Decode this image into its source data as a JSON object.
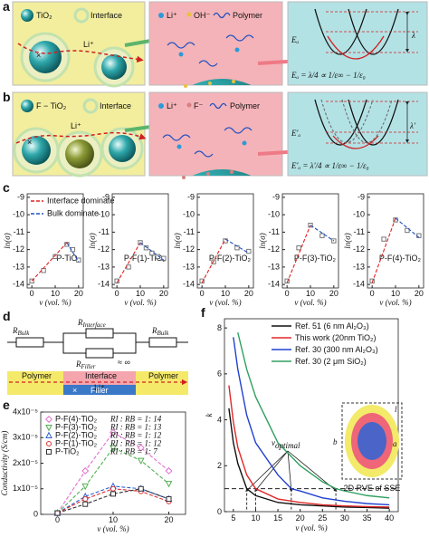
{
  "figure_a": {
    "label": "a",
    "tio2": "TiO₂",
    "interface": "Interface",
    "li": "Li⁺",
    "li_top": "Li⁺",
    "oh": "OH⁻",
    "polymer": "Polymer",
    "ea": "Eₐ",
    "lambda": "λ",
    "formula": "Eₐ = λ/4 ∝ 1/ε∞ − 1/ε₀"
  },
  "figure_b": {
    "label": "b",
    "ftio2": "F − TiO₂",
    "interface": "Interface",
    "li": "Li⁺",
    "li_top": "Li⁺",
    "f": "F⁻",
    "polymer": "Polymer",
    "ea": "E′ₐ",
    "lambda": "λ′",
    "formula": "E′ₐ = λ′/4 ∝ 1/ε∞ − 1/ε₀"
  },
  "figure_d": {
    "label": "d",
    "r_bulk_left": {
      "r": "R",
      "sub": "Bulk"
    },
    "r_interface": {
      "r": "R",
      "sub": "Interface"
    },
    "r_filler": {
      "r": "R",
      "sub": "Filler",
      "approx": "≈ ∞"
    },
    "r_bulk_right": {
      "r": "R",
      "sub": "Bulk"
    },
    "polymer_left": "Polymer",
    "interface": "Interface",
    "polymer_right": "Polymer",
    "li": "Li⁺",
    "filler": "Filler"
  },
  "chart_data": [
    {
      "type": "line",
      "panel_label": "c",
      "title": "P-TiO₂",
      "x_label": "v (vol. %)",
      "y_label": "ln(σ)",
      "xlim": [
        -2,
        22
      ],
      "ylim": [
        -14.2,
        -8.8
      ],
      "xticks": [
        0,
        10,
        20
      ],
      "yticks": [
        -14,
        -13,
        -12,
        -11,
        -10,
        -9
      ],
      "legend": "upper right",
      "series": [
        {
          "color": "#777777",
          "marker": "square",
          "line": false,
          "x": [
            0,
            5,
            10,
            15,
            17.5,
            20
          ],
          "values": [
            -13.8,
            -13.2,
            -12.4,
            -11.7,
            -12.0,
            -12.6
          ]
        },
        {
          "name": "Interface dominate",
          "color": "#e02020",
          "dash": true,
          "x": [
            0,
            15
          ],
          "values": [
            -13.8,
            -11.6
          ]
        },
        {
          "name": "Bulk dominate",
          "color": "#2050c0",
          "dash": true,
          "x": [
            15,
            20
          ],
          "values": [
            -11.6,
            -12.7
          ]
        }
      ]
    },
    {
      "type": "line",
      "title": "P-F(1)-TiO₂",
      "x_label": "v (vol. %)",
      "y_label": "ln(σ)",
      "xlim": [
        -2,
        22
      ],
      "ylim": [
        -14.2,
        -8.8
      ],
      "xticks": [
        0,
        10,
        20
      ],
      "yticks": [
        -14,
        -13,
        -12,
        -11,
        -10,
        -9
      ],
      "series": [
        {
          "color": "#777777",
          "marker": "square",
          "line": false,
          "x": [
            0,
            5,
            10,
            12.5,
            15,
            17.5,
            20
          ],
          "values": [
            -13.8,
            -13.0,
            -11.6,
            -11.9,
            -12.2,
            -12.4,
            -12.5
          ]
        },
        {
          "color": "#e02020",
          "dash": true,
          "x": [
            0,
            10
          ],
          "values": [
            -13.9,
            -11.6
          ]
        },
        {
          "color": "#2050c0",
          "dash": true,
          "x": [
            10,
            20
          ],
          "values": [
            -11.6,
            -12.6
          ]
        }
      ]
    },
    {
      "type": "line",
      "title": "P-F(2)-TiO₂",
      "x_label": "v (vol. %)",
      "y_label": "ln(σ)",
      "xlim": [
        -2,
        22
      ],
      "ylim": [
        -14.2,
        -8.8
      ],
      "xticks": [
        0,
        10,
        20
      ],
      "yticks": [
        -14,
        -13,
        -12,
        -11,
        -10,
        -9
      ],
      "series": [
        {
          "color": "#777777",
          "marker": "square",
          "line": false,
          "x": [
            0,
            5,
            10,
            15,
            20
          ],
          "values": [
            -13.8,
            -12.7,
            -11.5,
            -11.9,
            -12.1
          ]
        },
        {
          "color": "#e02020",
          "dash": true,
          "x": [
            0,
            10
          ],
          "values": [
            -13.9,
            -11.4
          ]
        },
        {
          "color": "#2050c0",
          "dash": true,
          "x": [
            10,
            20
          ],
          "values": [
            -11.4,
            -12.2
          ]
        }
      ]
    },
    {
      "type": "line",
      "title": "P-F(3)-TiO₂",
      "x_label": "v (vol. %)",
      "y_label": "ln(σ)",
      "xlim": [
        -2,
        22
      ],
      "ylim": [
        -14.2,
        -8.8
      ],
      "xticks": [
        0,
        10,
        20
      ],
      "yticks": [
        -14,
        -13,
        -12,
        -11,
        -10,
        -9
      ],
      "series": [
        {
          "color": "#777777",
          "marker": "square",
          "line": false,
          "x": [
            0,
            5,
            10,
            15,
            20
          ],
          "values": [
            -13.8,
            -11.9,
            -10.6,
            -11.2,
            -11.5
          ]
        },
        {
          "color": "#e02020",
          "dash": true,
          "x": [
            0,
            10
          ],
          "values": [
            -13.9,
            -10.6
          ]
        },
        {
          "color": "#2050c0",
          "dash": true,
          "x": [
            10,
            20
          ],
          "values": [
            -10.6,
            -11.5
          ]
        }
      ]
    },
    {
      "type": "line",
      "title": "P-F(4)-TiO₂",
      "x_label": "v (vol. %)",
      "y_label": "ln(σ)",
      "xlim": [
        -2,
        22
      ],
      "ylim": [
        -14.2,
        -8.8
      ],
      "xticks": [
        0,
        10,
        20
      ],
      "yticks": [
        -14,
        -13,
        -12,
        -11,
        -10,
        -9
      ],
      "series": [
        {
          "color": "#777777",
          "marker": "square",
          "line": false,
          "x": [
            0,
            5,
            10,
            15,
            20
          ],
          "values": [
            -13.8,
            -11.4,
            -10.3,
            -10.9,
            -11.2
          ]
        },
        {
          "color": "#e02020",
          "dash": true,
          "x": [
            0,
            10
          ],
          "values": [
            -13.9,
            -10.2
          ]
        },
        {
          "color": "#2050c0",
          "dash": true,
          "x": [
            10,
            20
          ],
          "values": [
            -10.2,
            -11.3
          ]
        }
      ]
    },
    {
      "type": "line",
      "panel_label": "e",
      "x_label": "v (vol. %)",
      "y_label": "Conductivity (S/cm)",
      "xlim": [
        -3,
        23
      ],
      "ylim": [
        0,
        4e-05
      ],
      "xticks": [
        0,
        10,
        20
      ],
      "yticks": [
        0,
        {
          "value": 1e-05,
          "label": "1x10⁻⁵"
        },
        {
          "value": 2e-05,
          "label": "2x10⁻⁵"
        },
        {
          "value": 3e-05,
          "label": "3x10⁻⁵"
        },
        {
          "value": 4e-05,
          "label": "4x10⁻⁵"
        }
      ],
      "legend": "upper left",
      "annotations": [
        "RI : RB = 1: 14",
        "RI : RB = 1: 13",
        "RI : RB = 1: 12",
        "RI : RB = 1: 12",
        "RI : RB = 1: 7"
      ],
      "series": [
        {
          "name": "P-F(4)-TiO₂",
          "color": "#e070d0",
          "marker": "diamond",
          "dash": true,
          "x": [
            0,
            5,
            10,
            15,
            20
          ],
          "values": [
            5e-07,
            1.7e-05,
            3.2e-05,
            2.6e-05,
            1.7e-05
          ]
        },
        {
          "name": "P-F(3)-TiO₂",
          "color": "#50b050",
          "marker": "triangle-down",
          "dash": true,
          "x": [
            0,
            5,
            10,
            15,
            20
          ],
          "values": [
            5e-07,
            1.1e-05,
            2.6e-05,
            2.1e-05,
            1.2e-05
          ]
        },
        {
          "name": "P-F(2)-TiO₂",
          "color": "#3060d0",
          "marker": "triangle-up",
          "dash": true,
          "x": [
            0,
            5,
            10,
            15,
            20
          ],
          "values": [
            5e-07,
            7e-06,
            1.1e-05,
            1e-05,
            6e-06
          ]
        },
        {
          "name": "P-F(1)-TiO₂",
          "color": "#e03030",
          "marker": "circle",
          "dash": true,
          "x": [
            0,
            5,
            10,
            15,
            20
          ],
          "values": [
            5e-07,
            6e-06,
            1e-05,
            9e-06,
            5e-06
          ]
        },
        {
          "name": "P-TiO₂",
          "color": "#333333",
          "marker": "square",
          "dash": true,
          "x": [
            0,
            5,
            10,
            15,
            20
          ],
          "values": [
            5e-07,
            4e-06,
            8e-06,
            1e-05,
            6e-06
          ]
        }
      ]
    },
    {
      "type": "line",
      "panel_label": "f",
      "x_label": "v (vol. %)",
      "y_label": "k",
      "xlim": [
        3,
        42
      ],
      "ylim": [
        0,
        8.4
      ],
      "xticks": [
        5,
        10,
        15,
        20,
        25,
        30,
        35,
        40
      ],
      "yticks": [
        0,
        2,
        4,
        6,
        8
      ],
      "legend": "upper right",
      "reference_line": 1,
      "v_optimal_x": [
        8,
        10,
        18,
        28
      ],
      "v_optimal_label": {
        "text": "v",
        "sub": "optimal"
      },
      "inset": {
        "l": "l",
        "b": "b",
        "a": "a",
        "caption": "2D RVE of SSE"
      },
      "series": [
        {
          "name": "Ref. 51 (6 nm Al₂O₃)",
          "color": "#111111",
          "x": [
            4,
            5,
            6,
            8,
            10,
            15,
            20,
            25,
            30,
            35,
            40
          ],
          "values": [
            4.5,
            3.0,
            2.1,
            1.0,
            0.7,
            0.4,
            0.3,
            0.25,
            0.2,
            0.18,
            0.15
          ]
        },
        {
          "name": "This work (20nm TiO₂)",
          "color": "#e02828",
          "x": [
            4,
            5,
            6,
            8,
            10,
            15,
            20,
            25,
            30,
            35,
            40
          ],
          "values": [
            5.5,
            3.9,
            2.8,
            1.6,
            1.0,
            0.55,
            0.4,
            0.3,
            0.25,
            0.22,
            0.2
          ]
        },
        {
          "name": "Ref. 30 (300 nm Al₂O₃)",
          "color": "#2040d0",
          "x": [
            5,
            6,
            8,
            10,
            15,
            18,
            20,
            25,
            30,
            35,
            40
          ],
          "values": [
            7.6,
            6.2,
            4.2,
            3.0,
            1.6,
            1.0,
            0.9,
            0.6,
            0.45,
            0.35,
            0.3
          ]
        },
        {
          "name": "Ref. 30 (2 μm SiO₂)",
          "color": "#30a060",
          "x": [
            6,
            8,
            10,
            15,
            20,
            25,
            28,
            30,
            35,
            40
          ],
          "values": [
            7.8,
            6.2,
            5.0,
            3.0,
            2.0,
            1.3,
            1.0,
            0.9,
            0.7,
            0.6
          ]
        }
      ]
    }
  ]
}
